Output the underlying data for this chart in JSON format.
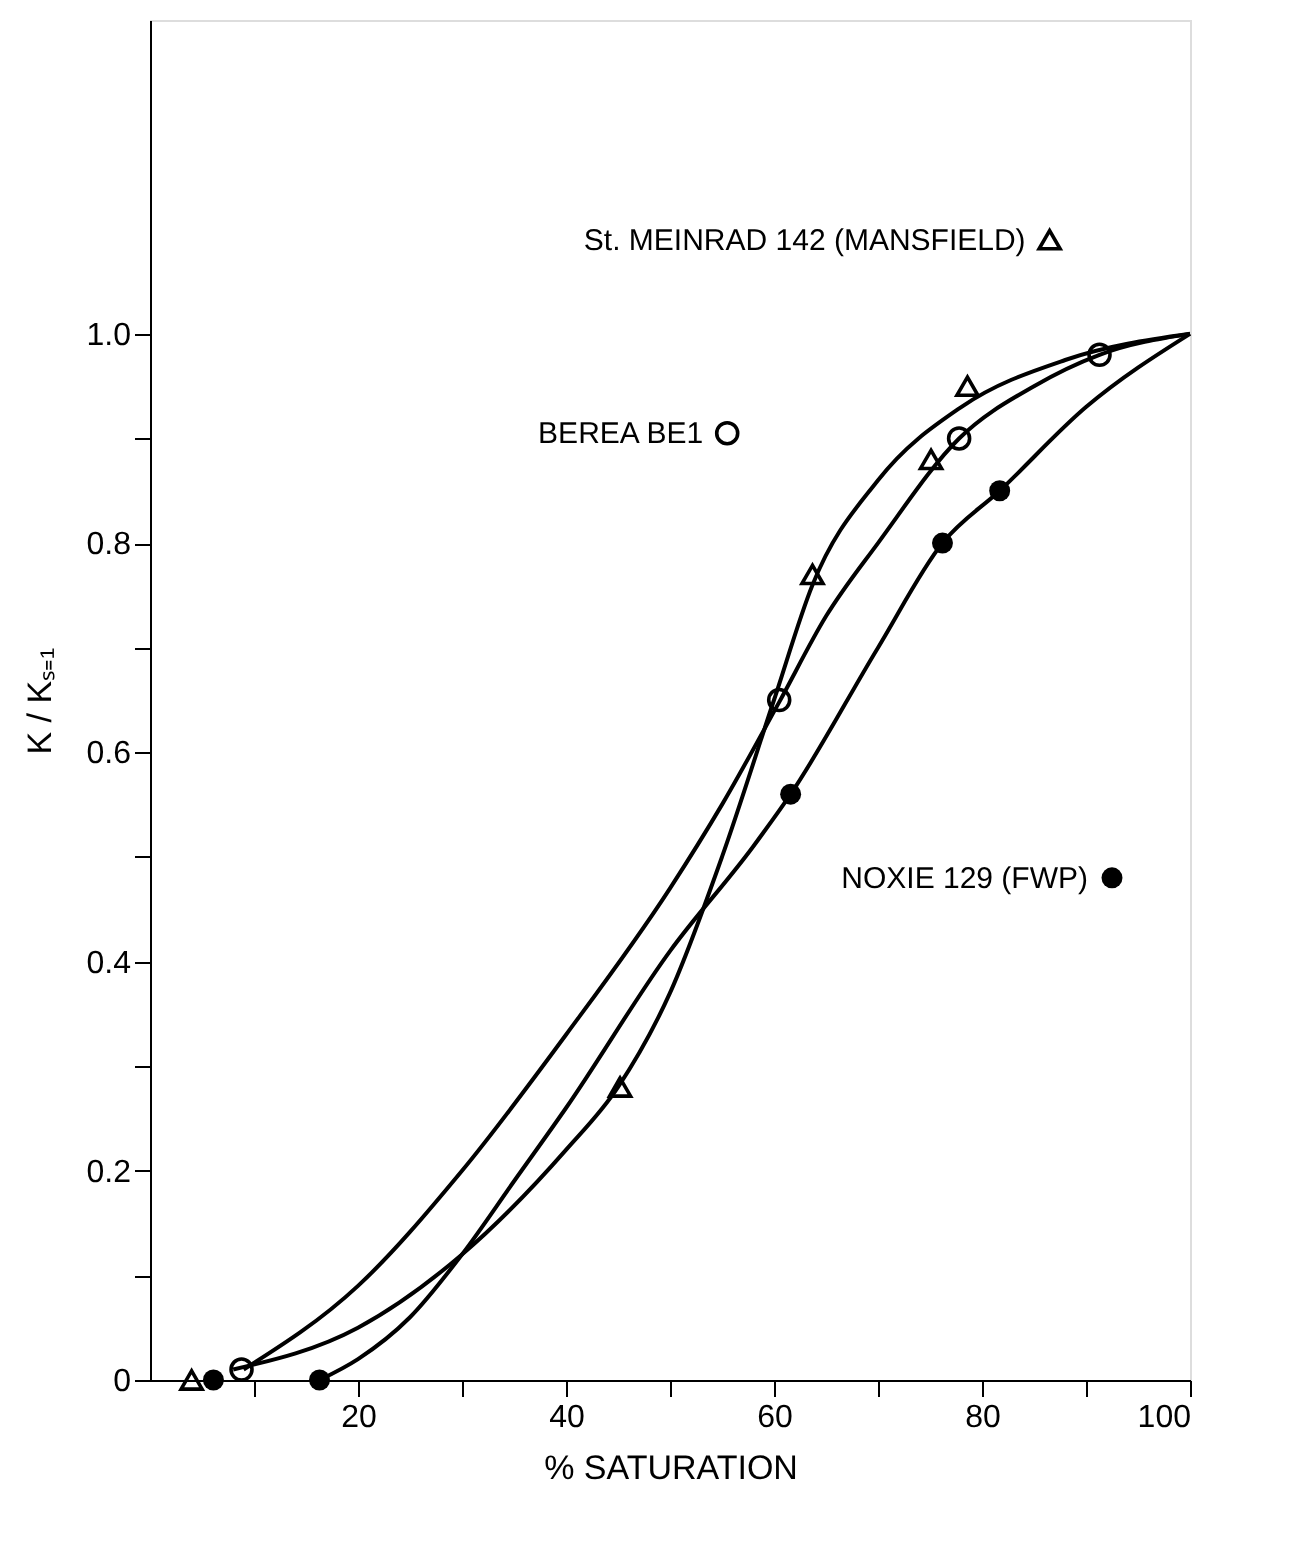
{
  "chart_data": {
    "type": "scatter",
    "xlabel": "% SATURATION",
    "ylabel": "K / Kₛ₌₁",
    "xlim": [
      0,
      100
    ],
    "ylim": [
      0,
      1.3
    ],
    "xticks": [
      {
        "value": 10,
        "label": null
      },
      20,
      {
        "value": 30,
        "label": null
      },
      40,
      {
        "value": 50,
        "label": null
      },
      60,
      {
        "value": 70,
        "label": null
      },
      80,
      {
        "value": 90,
        "label": null
      },
      100
    ],
    "yticks": [
      {
        "value": 0,
        "label": "0"
      },
      {
        "value": 0.1,
        "label": null
      },
      0.2,
      {
        "value": 0.3,
        "label": null
      },
      0.4,
      {
        "value": 0.5,
        "label": null
      },
      0.6,
      {
        "value": 0.7,
        "label": null
      },
      0.8,
      {
        "value": 0.9,
        "label": null
      },
      {
        "value": 1,
        "label": "1.0"
      }
    ],
    "grid": false,
    "legend": "top right",
    "series": [
      {
        "name": "St. MEINRAD 142 (MANSFIELD)",
        "color": "#000000",
        "marker": "triangle",
        "x": [
          4.0,
          45.2,
          63.7,
          75.1,
          78.6
        ],
        "values": [
          0.0,
          0.28,
          0.77,
          0.88,
          0.95
        ]
      },
      {
        "name": "BEREA BE1",
        "color": "#000000",
        "marker": "circle",
        "x": [
          8.8,
          60.5,
          77.8,
          91.3
        ],
        "values": [
          0.01,
          0.65,
          0.9,
          0.98
        ]
      },
      {
        "name": "NOXIE 129 (FWP)",
        "color": "#000000",
        "marker": "circle",
        "x": [
          6.1,
          16.3,
          61.6,
          76.2,
          81.7
        ],
        "values": [
          0.0,
          0.0,
          0.56,
          0.8,
          0.85
        ]
      },
      {
        "type": "line",
        "color": "#000000",
        "line_style": "solid",
        "x": [
          8,
          20,
          30,
          40,
          45,
          50,
          55,
          60,
          63.7,
          70,
          78,
          88,
          100
        ],
        "values": [
          0.01,
          0.05,
          0.12,
          0.22,
          0.28,
          0.37,
          0.5,
          0.65,
          0.76,
          0.86,
          0.93,
          0.975,
          1.0
        ]
      },
      {
        "type": "line",
        "color": "#000000",
        "line_style": "solid",
        "x": [
          9,
          20,
          30,
          40,
          50,
          55,
          60.5,
          65,
          70,
          77.8,
          85,
          91.3,
          100
        ],
        "values": [
          0.01,
          0.09,
          0.2,
          0.33,
          0.47,
          0.55,
          0.648,
          0.73,
          0.8,
          0.9,
          0.95,
          0.98,
          1.0
        ]
      },
      {
        "type": "line",
        "color": "#000000",
        "line_style": "solid",
        "x": [
          16.3,
          20,
          25,
          30,
          35,
          40,
          50,
          58,
          61.6,
          70,
          76.2,
          81.7,
          90,
          100
        ],
        "values": [
          0.0,
          0.02,
          0.06,
          0.12,
          0.19,
          0.26,
          0.41,
          0.51,
          0.56,
          0.7,
          0.8,
          0.85,
          0.93,
          1.0
        ]
      }
    ]
  }
}
